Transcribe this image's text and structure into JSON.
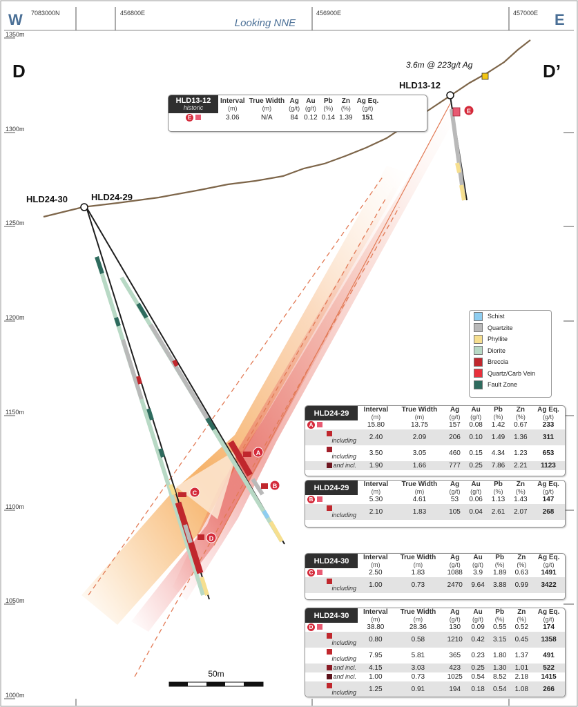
{
  "header": {
    "west": "W",
    "east": "E",
    "looking": "Looking NNE",
    "eastings": [
      "7083000N",
      "456800E",
      "456900E",
      "457000E"
    ]
  },
  "section": {
    "left": "D",
    "right": "D’"
  },
  "elevations": [
    "1350m",
    "1300m",
    "1250m",
    "1200m",
    "1150m",
    "1100m",
    "1050m",
    "1000m"
  ],
  "holes": {
    "hld13_12": "HLD13-12",
    "hld24_30": "HLD24-30",
    "hld24_29": "HLD24-29"
  },
  "surface_callout": "3.6m @ 223g/t Ag",
  "intercept_markers": [
    "A",
    "B",
    "C",
    "D",
    "E"
  ],
  "scale_bar": "50m",
  "legend": [
    {
      "label": "Schist",
      "color": "#8ecdf0"
    },
    {
      "label": "Quartzite",
      "color": "#b9b9b9"
    },
    {
      "label": "Phyllite",
      "color": "#f6df8f"
    },
    {
      "label": "Diorite",
      "color": "#b8d9c5"
    },
    {
      "label": "Breccia",
      "color": "#c0272d"
    },
    {
      "label": "Quartz/Carb Vein",
      "color": "#e8303c"
    },
    {
      "label": "Fault Zone",
      "color": "#2e6b5e"
    }
  ],
  "table_headers": {
    "interval": "Interval",
    "true_width": "True Width",
    "ag": "Ag",
    "au": "Au",
    "pb": "Pb",
    "zn": "Zn",
    "ag_eq": "Ag Eq.",
    "u_m": "(m)",
    "u_gt": "(g/t)",
    "u_pct": "(%)"
  },
  "table_hld13_12": {
    "hole": "HLD13-12",
    "sub": "historic",
    "marker": "E",
    "rows": [
      {
        "interval": "3.06",
        "true_width": "N/A",
        "ag": "84",
        "au": "0.12",
        "pb": "0.14",
        "zn": "1.39",
        "ag_eq": "151"
      }
    ]
  },
  "table_hld24_29_a": {
    "hole": "HLD24-29",
    "marker": "A",
    "rows": [
      {
        "note": "",
        "interval": "15.80",
        "true_width": "13.75",
        "ag": "157",
        "au": "0.08",
        "pb": "1.42",
        "zn": "0.67",
        "ag_eq": "233"
      },
      {
        "note": "including",
        "interval": "2.40",
        "true_width": "2.09",
        "ag": "206",
        "au": "0.10",
        "pb": "1.49",
        "zn": "1.36",
        "ag_eq": "311"
      },
      {
        "note": "including",
        "interval": "3.50",
        "true_width": "3.05",
        "ag": "460",
        "au": "0.15",
        "pb": "4.34",
        "zn": "1.23",
        "ag_eq": "653"
      },
      {
        "note": "and incl.",
        "interval": "1.90",
        "true_width": "1.66",
        "ag": "777",
        "au": "0.25",
        "pb": "7.86",
        "zn": "2.21",
        "ag_eq": "1123"
      }
    ]
  },
  "table_hld24_29_b": {
    "hole": "HLD24-29",
    "marker": "B",
    "rows": [
      {
        "note": "",
        "interval": "5.30",
        "true_width": "4.61",
        "ag": "53",
        "au": "0.06",
        "pb": "1.13",
        "zn": "1.43",
        "ag_eq": "147"
      },
      {
        "note": "including",
        "interval": "2.10",
        "true_width": "1.83",
        "ag": "105",
        "au": "0.04",
        "pb": "2.61",
        "zn": "2.07",
        "ag_eq": "268"
      }
    ]
  },
  "table_hld24_30_c": {
    "hole": "HLD24-30",
    "marker": "C",
    "rows": [
      {
        "note": "",
        "interval": "2.50",
        "true_width": "1.83",
        "ag": "1088",
        "au": "3.9",
        "pb": "1.89",
        "zn": "0.63",
        "ag_eq": "1491"
      },
      {
        "note": "including",
        "interval": "1.00",
        "true_width": "0.73",
        "ag": "2470",
        "au": "9.64",
        "pb": "3.88",
        "zn": "0.99",
        "ag_eq": "3422"
      }
    ]
  },
  "table_hld24_30_d": {
    "hole": "HLD24-30",
    "marker": "D",
    "rows": [
      {
        "note": "",
        "interval": "38.80",
        "true_width": "28.36",
        "ag": "130",
        "au": "0.09",
        "pb": "0.55",
        "zn": "0.52",
        "ag_eq": "174"
      },
      {
        "note": "including",
        "interval": "0.80",
        "true_width": "0.58",
        "ag": "1210",
        "au": "0.42",
        "pb": "3.15",
        "zn": "0.45",
        "ag_eq": "1358"
      },
      {
        "note": "including",
        "interval": "7.95",
        "true_width": "5.81",
        "ag": "365",
        "au": "0.23",
        "pb": "1.80",
        "zn": "1.37",
        "ag_eq": "491"
      },
      {
        "note": "and incl.",
        "interval": "4.15",
        "true_width": "3.03",
        "ag": "423",
        "au": "0.25",
        "pb": "1.30",
        "zn": "1.01",
        "ag_eq": "522"
      },
      {
        "note": "and incl.",
        "interval": "1.00",
        "true_width": "0.73",
        "ag": "1025",
        "au": "0.54",
        "pb": "8.52",
        "zn": "2.18",
        "ag_eq": "1415"
      },
      {
        "note": "including",
        "interval": "1.25",
        "true_width": "0.91",
        "ag": "194",
        "au": "0.18",
        "pb": "0.54",
        "zn": "1.08",
        "ag_eq": "266"
      }
    ]
  },
  "colors": {
    "topo": "#7d6549",
    "hole": "#1e1e1e",
    "marker": "#d42a3a",
    "grid": "#555555",
    "header_text": "#4a6f96"
  }
}
